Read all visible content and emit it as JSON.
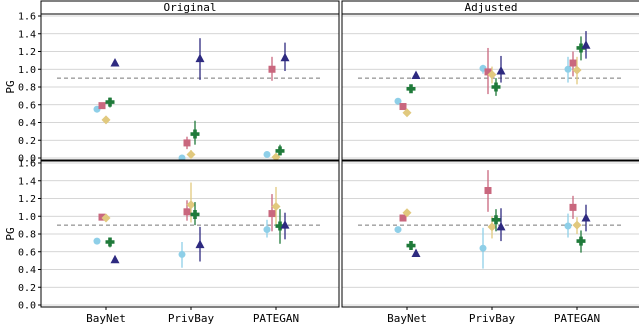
{
  "chart_data": {
    "type": "scatter",
    "ylabel": "PG",
    "ylim": [
      0,
      1.6
    ],
    "yticks": [
      "0.0",
      "0.2",
      "0.4",
      "0.6",
      "0.8",
      "1.0",
      "1.2",
      "1.4",
      "1.6"
    ],
    "reference_line": 0.9,
    "categories": [
      "BayNet",
      "PrivBay",
      "PATEGAN"
    ],
    "columns": [
      "Original",
      "Adjusted"
    ],
    "grid": true,
    "series_style": [
      {
        "color": "#8ecfe8",
        "marker": "circle"
      },
      {
        "color": "#c9677e",
        "marker": "square"
      },
      {
        "color": "#e1c97e",
        "marker": "diamond"
      },
      {
        "color": "#1f7a3a",
        "marker": "plus"
      },
      {
        "color": "#2e2a80",
        "marker": "triangle"
      }
    ],
    "panels": [
      {
        "row": 0,
        "col": 0,
        "points": [
          [
            [
              0.55,
              0.55,
              0.55
            ],
            [
              0.59,
              0.59,
              0.59
            ],
            [
              0.43,
              0.43,
              0.43
            ],
            [
              0.63,
              0.57,
              0.68
            ],
            [
              1.07,
              1.07,
              1.07
            ]
          ],
          [
            [
              0.0,
              0.0,
              0.0
            ],
            [
              0.17,
              0.1,
              0.24
            ],
            [
              0.04,
              0.0,
              0.09
            ],
            [
              0.27,
              0.15,
              0.42
            ],
            [
              1.12,
              0.88,
              1.35
            ]
          ],
          [
            [
              0.04,
              0.04,
              0.04
            ],
            [
              1.0,
              0.87,
              1.14
            ],
            [
              0.01,
              0.0,
              0.04
            ],
            [
              0.08,
              0.03,
              0.15
            ],
            [
              1.13,
              0.98,
              1.3
            ]
          ]
        ]
      },
      {
        "row": 0,
        "col": 1,
        "points": [
          [
            [
              0.64,
              0.64,
              0.64
            ],
            [
              0.58,
              0.58,
              0.58
            ],
            [
              0.51,
              0.51,
              0.51
            ],
            [
              0.78,
              0.78,
              0.78
            ],
            [
              0.93,
              0.93,
              0.93
            ]
          ],
          [
            [
              1.01,
              0.95,
              1.05
            ],
            [
              0.97,
              0.72,
              1.24
            ],
            [
              0.94,
              0.84,
              1.03
            ],
            [
              0.8,
              0.7,
              0.9
            ],
            [
              0.98,
              0.85,
              1.15
            ]
          ],
          [
            [
              1.0,
              0.85,
              1.14
            ],
            [
              1.07,
              0.92,
              1.2
            ],
            [
              0.99,
              0.83,
              1.14
            ],
            [
              1.24,
              1.1,
              1.37
            ],
            [
              1.27,
              1.12,
              1.43
            ]
          ]
        ]
      },
      {
        "row": 1,
        "col": 0,
        "points": [
          [
            [
              0.72,
              0.72,
              0.72
            ],
            [
              0.99,
              0.99,
              0.99
            ],
            [
              0.98,
              0.98,
              0.98
            ],
            [
              0.71,
              0.65,
              0.76
            ],
            [
              0.51,
              0.51,
              0.51
            ]
          ],
          [
            [
              0.57,
              0.42,
              0.71
            ],
            [
              1.05,
              0.95,
              1.18
            ],
            [
              1.13,
              0.93,
              1.38
            ],
            [
              1.02,
              0.9,
              1.16
            ],
            [
              0.68,
              0.49,
              0.88
            ]
          ],
          [
            [
              0.85,
              0.76,
              0.96
            ],
            [
              1.03,
              0.83,
              1.25
            ],
            [
              1.11,
              0.9,
              1.33
            ],
            [
              0.89,
              0.69,
              1.08
            ],
            [
              0.9,
              0.74,
              1.04
            ]
          ]
        ]
      },
      {
        "row": 1,
        "col": 1,
        "points": [
          [
            [
              0.85,
              0.85,
              0.85
            ],
            [
              0.98,
              0.98,
              0.98
            ],
            [
              1.04,
              1.04,
              1.04
            ],
            [
              0.67,
              0.67,
              0.67
            ],
            [
              0.58,
              0.58,
              0.58
            ]
          ],
          [
            [
              0.64,
              0.41,
              0.87
            ],
            [
              1.29,
              1.05,
              1.52
            ],
            [
              0.88,
              0.75,
              1.0
            ],
            [
              0.96,
              0.83,
              1.08
            ],
            [
              0.88,
              0.72,
              1.09
            ]
          ],
          [
            [
              0.89,
              0.76,
              1.03
            ],
            [
              1.1,
              0.97,
              1.23
            ],
            [
              0.9,
              0.8,
              0.99
            ],
            [
              0.72,
              0.59,
              0.84
            ],
            [
              0.98,
              0.83,
              1.13
            ]
          ]
        ]
      }
    ]
  }
}
